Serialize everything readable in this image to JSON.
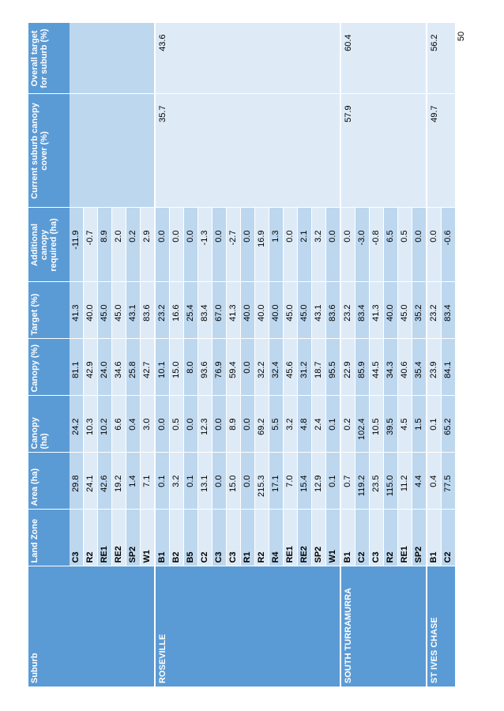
{
  "page_number": "50",
  "headers": {
    "suburb": "Suburb",
    "land_zone": "Land Zone",
    "area": "Area (ha)",
    "canopy_ha": "Canopy (ha)",
    "canopy_pct": "Canopy (%)",
    "target": "Target (%)",
    "additional": "Additional canopy required (ha)",
    "current": "Current suburb canopy cover (%)",
    "overall": "Overall target for suburb (%)"
  },
  "groups": {
    "prev": {
      "rows": [
        {
          "zone": "C3",
          "area": "29.8",
          "canopy_ha": "24.2",
          "canopy_pct": "81.1",
          "target": "41.3",
          "additional": "-11.9"
        },
        {
          "zone": "R2",
          "area": "24.1",
          "canopy_ha": "10.3",
          "canopy_pct": "42.9",
          "target": "40.0",
          "additional": "-0.7"
        },
        {
          "zone": "RE1",
          "area": "42.6",
          "canopy_ha": "10.2",
          "canopy_pct": "24.0",
          "target": "45.0",
          "additional": "8.9"
        },
        {
          "zone": "RE2",
          "area": "19.2",
          "canopy_ha": "6.6",
          "canopy_pct": "34.6",
          "target": "45.0",
          "additional": "2.0"
        },
        {
          "zone": "SP2",
          "area": "1.4",
          "canopy_ha": "0.4",
          "canopy_pct": "25.8",
          "target": "43.1",
          "additional": "0.2"
        },
        {
          "zone": "W1",
          "area": "7.1",
          "canopy_ha": "3.0",
          "canopy_pct": "42.7",
          "target": "83.6",
          "additional": "2.9"
        }
      ]
    },
    "roseville": {
      "name": "ROSEVILLE",
      "current": "35.7",
      "overall": "43.6",
      "rows": [
        {
          "zone": "B1",
          "area": "0.1",
          "canopy_ha": "0.0",
          "canopy_pct": "10.1",
          "target": "23.2",
          "additional": "0.0"
        },
        {
          "zone": "B2",
          "area": "3.2",
          "canopy_ha": "0.5",
          "canopy_pct": "15.0",
          "target": "16.6",
          "additional": "0.0"
        },
        {
          "zone": "B5",
          "area": "0.1",
          "canopy_ha": "0.0",
          "canopy_pct": "8.0",
          "target": "25.4",
          "additional": "0.0"
        },
        {
          "zone": "C2",
          "area": "13.1",
          "canopy_ha": "12.3",
          "canopy_pct": "93.6",
          "target": "83.4",
          "additional": "-1.3"
        },
        {
          "zone": "C3",
          "area": "0.0",
          "canopy_ha": "0.0",
          "canopy_pct": "76.9",
          "target": "67.0",
          "additional": "0.0"
        },
        {
          "zone": "C3",
          "area": "15.0",
          "canopy_ha": "8.9",
          "canopy_pct": "59.4",
          "target": "41.3",
          "additional": "-2.7"
        },
        {
          "zone": "R1",
          "area": "0.0",
          "canopy_ha": "0.0",
          "canopy_pct": "0.0",
          "target": "40.0",
          "additional": "0.0"
        },
        {
          "zone": "R2",
          "area": "215.3",
          "canopy_ha": "69.2",
          "canopy_pct": "32.2",
          "target": "40.0",
          "additional": "16.9"
        },
        {
          "zone": "R4",
          "area": "17.1",
          "canopy_ha": "5.5",
          "canopy_pct": "32.4",
          "target": "40.0",
          "additional": "1.3"
        },
        {
          "zone": "RE1",
          "area": "7.0",
          "canopy_ha": "3.2",
          "canopy_pct": "45.6",
          "target": "45.0",
          "additional": "0.0"
        },
        {
          "zone": "RE2",
          "area": "15.4",
          "canopy_ha": "4.8",
          "canopy_pct": "31.2",
          "target": "45.0",
          "additional": "2.1"
        },
        {
          "zone": "SP2",
          "area": "12.9",
          "canopy_ha": "2.4",
          "canopy_pct": "18.7",
          "target": "43.1",
          "additional": "3.2"
        },
        {
          "zone": "W1",
          "area": "0.1",
          "canopy_ha": "0.1",
          "canopy_pct": "95.5",
          "target": "83.6",
          "additional": "0.0"
        }
      ]
    },
    "south_turramurra": {
      "name": "SOUTH TURRAMURRA",
      "current": "57.9",
      "overall": "60.4",
      "rows": [
        {
          "zone": "B1",
          "area": "0.7",
          "canopy_ha": "0.2",
          "canopy_pct": "22.9",
          "target": "23.2",
          "additional": "0.0"
        },
        {
          "zone": "C2",
          "area": "119.2",
          "canopy_ha": "102.4",
          "canopy_pct": "85.9",
          "target": "83.4",
          "additional": "-3.0"
        },
        {
          "zone": "C3",
          "area": "23.5",
          "canopy_ha": "10.5",
          "canopy_pct": "44.5",
          "target": "41.3",
          "additional": "-0.8"
        },
        {
          "zone": "R2",
          "area": "115.0",
          "canopy_ha": "39.5",
          "canopy_pct": "34.3",
          "target": "40.0",
          "additional": "6.5"
        },
        {
          "zone": "RE1",
          "area": "11.2",
          "canopy_ha": "4.5",
          "canopy_pct": "40.6",
          "target": "45.0",
          "additional": "0.5"
        },
        {
          "zone": "SP2",
          "area": "4.4",
          "canopy_ha": "1.5",
          "canopy_pct": "35.4",
          "target": "35.2",
          "additional": "0.0"
        }
      ]
    },
    "st_ives_chase": {
      "name": "ST IVES CHASE",
      "current": "49.7",
      "overall": "56.2",
      "rows": [
        {
          "zone": "B1",
          "area": "0.4",
          "canopy_ha": "0.1",
          "canopy_pct": "23.9",
          "target": "23.2",
          "additional": "0.0"
        },
        {
          "zone": "C2",
          "area": "77.5",
          "canopy_ha": "65.2",
          "canopy_pct": "84.1",
          "target": "83.4",
          "additional": "-0.6"
        }
      ]
    }
  }
}
